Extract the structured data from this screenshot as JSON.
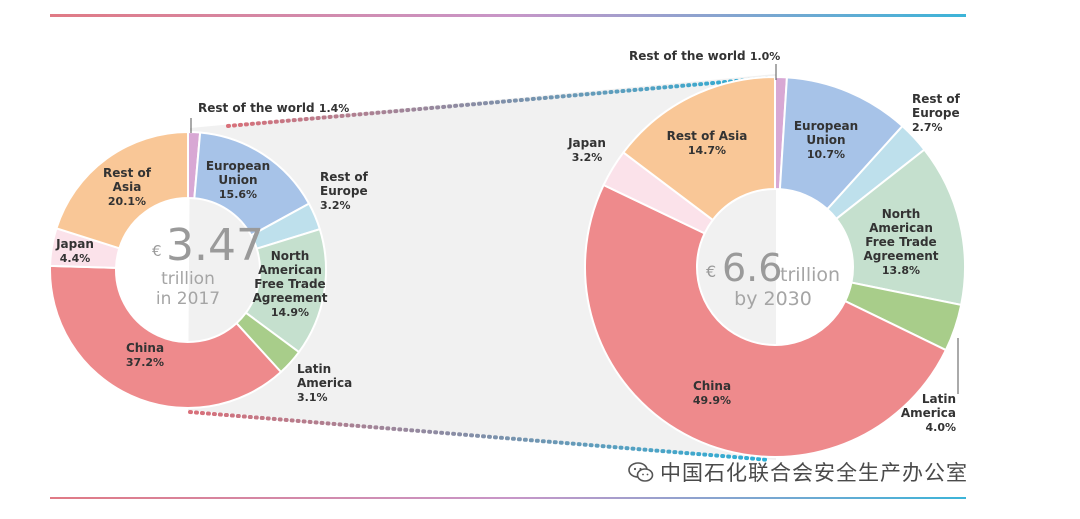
{
  "chart_data": [
    {
      "type": "pie",
      "variant": "donut",
      "center": {
        "currency": "€",
        "value": "3.47",
        "unit": "trillion",
        "period": "in 2017"
      },
      "slices": [
        {
          "label": "Rest of the world",
          "value": 1.4,
          "pct_text": "1.4%",
          "color": "#d8a8d4"
        },
        {
          "label": "European Union",
          "value": 15.6,
          "pct_text": "15.6%",
          "color": "#a7c3e8"
        },
        {
          "label": "Rest of Europe",
          "value": 3.2,
          "pct_text": "3.2%",
          "color": "#bee0ec"
        },
        {
          "label": "North American Free Trade Agreement",
          "value": 14.9,
          "pct_text": "14.9%",
          "color": "#c5e0ce"
        },
        {
          "label": "Latin America",
          "value": 3.1,
          "pct_text": "3.1%",
          "color": "#a8cd8a"
        },
        {
          "label": "China",
          "value": 37.2,
          "pct_text": "37.2%",
          "color": "#ee8a8c"
        },
        {
          "label": "Japan",
          "value": 4.4,
          "pct_text": "4.4%",
          "color": "#fbe2ea"
        },
        {
          "label": "Rest of Asia",
          "value": 20.1,
          "pct_text": "20.1%",
          "color": "#f9c797"
        }
      ]
    },
    {
      "type": "pie",
      "variant": "donut",
      "center": {
        "currency": "€",
        "value": "6.6",
        "unit": "trillion",
        "period": "by 2030"
      },
      "slices": [
        {
          "label": "Rest of the world",
          "value": 1.0,
          "pct_text": "1.0%",
          "color": "#d8a8d4"
        },
        {
          "label": "European Union",
          "value": 10.7,
          "pct_text": "10.7%",
          "color": "#a7c3e8"
        },
        {
          "label": "Rest of Europe",
          "value": 2.7,
          "pct_text": "2.7%",
          "color": "#bee0ec"
        },
        {
          "label": "North American Free Trade Agreement",
          "value": 13.8,
          "pct_text": "13.8%",
          "color": "#c5e0ce"
        },
        {
          "label": "Latin America",
          "value": 4.0,
          "pct_text": "4.0%",
          "color": "#a8cd8a"
        },
        {
          "label": "China",
          "value": 49.9,
          "pct_text": "49.9%",
          "color": "#ee8a8c"
        },
        {
          "label": "Japan",
          "value": 3.2,
          "pct_text": "3.2%",
          "color": "#fbe2ea"
        },
        {
          "label": "Rest of Asia",
          "value": 14.7,
          "pct_text": "14.7%",
          "color": "#f9c797"
        }
      ]
    }
  ],
  "connector_colors": {
    "left": "#d9707a",
    "right": "#2ab0d8",
    "band": "#e6e6e6"
  },
  "watermark": {
    "text": "中国石化联合会安全生产办公室",
    "icon": "wechat-icon"
  }
}
